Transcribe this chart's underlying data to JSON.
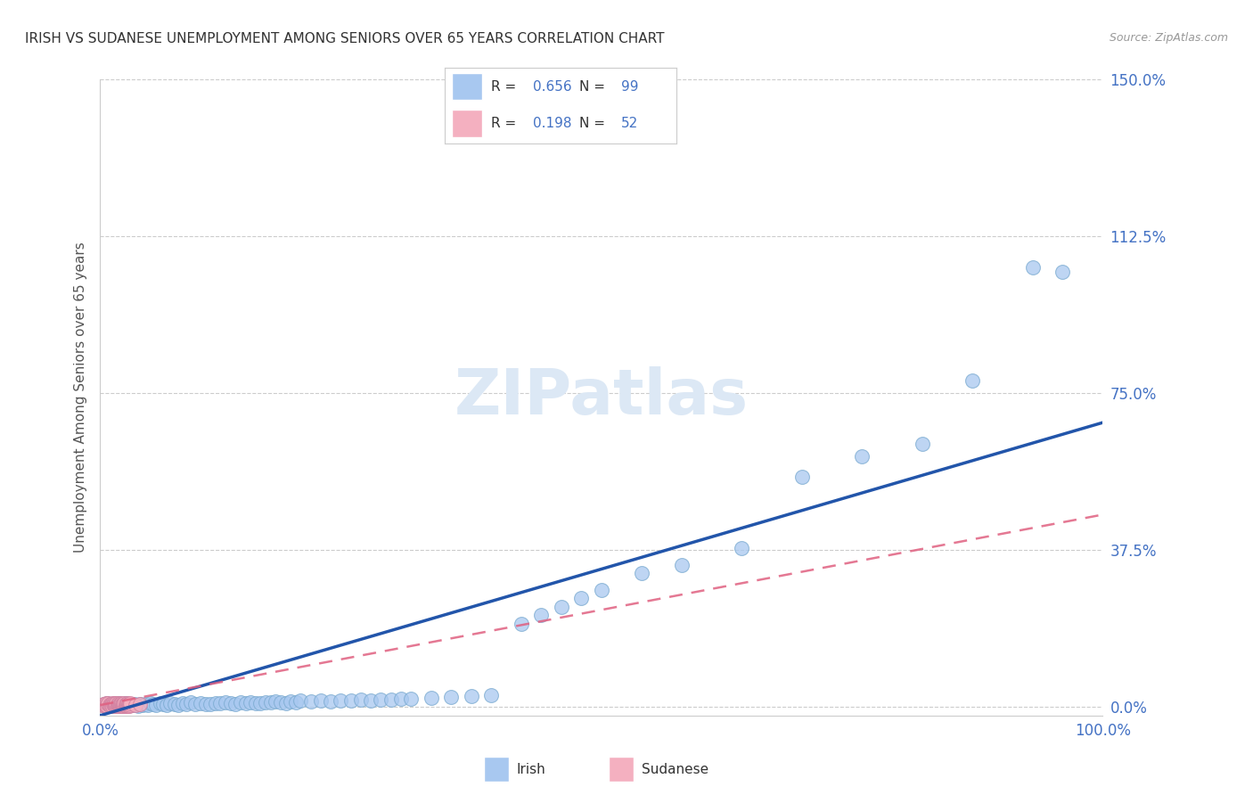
{
  "title": "IRISH VS SUDANESE UNEMPLOYMENT AMONG SENIORS OVER 65 YEARS CORRELATION CHART",
  "source": "Source: ZipAtlas.com",
  "ylabel_label": "Unemployment Among Seniors over 65 years",
  "legend_irish": "Irish",
  "legend_sudanese": "Sudanese",
  "irish_R": "0.656",
  "irish_N": "99",
  "sudanese_R": "0.198",
  "sudanese_N": "52",
  "irish_color": "#a8c8f0",
  "irish_edge_color": "#7aaad0",
  "irish_line_color": "#2255aa",
  "sudanese_color": "#f4b0c0",
  "sudanese_edge_color": "#d080a0",
  "sudanese_line_color": "#e06080",
  "title_color": "#333333",
  "axis_tick_color": "#4472c4",
  "grid_color": "#cccccc",
  "background_color": "#ffffff",
  "watermark_color": "#dce8f5",
  "irish_x": [
    0.003,
    0.004,
    0.005,
    0.006,
    0.007,
    0.008,
    0.008,
    0.009,
    0.01,
    0.011,
    0.012,
    0.013,
    0.014,
    0.015,
    0.016,
    0.017,
    0.018,
    0.019,
    0.02,
    0.021,
    0.022,
    0.023,
    0.024,
    0.025,
    0.026,
    0.027,
    0.028,
    0.03,
    0.032,
    0.034,
    0.036,
    0.038,
    0.04,
    0.042,
    0.045,
    0.048,
    0.05,
    0.053,
    0.056,
    0.06,
    0.063,
    0.066,
    0.07,
    0.074,
    0.078,
    0.082,
    0.086,
    0.09,
    0.095,
    0.1,
    0.105,
    0.11,
    0.115,
    0.12,
    0.125,
    0.13,
    0.135,
    0.14,
    0.145,
    0.15,
    0.155,
    0.16,
    0.165,
    0.17,
    0.175,
    0.18,
    0.185,
    0.19,
    0.195,
    0.2,
    0.21,
    0.22,
    0.23,
    0.24,
    0.25,
    0.26,
    0.27,
    0.28,
    0.29,
    0.3,
    0.31,
    0.33,
    0.35,
    0.37,
    0.39,
    0.42,
    0.44,
    0.46,
    0.48,
    0.5,
    0.54,
    0.58,
    0.64,
    0.7,
    0.76,
    0.82,
    0.87,
    0.93,
    0.96
  ],
  "irish_y": [
    0.005,
    0.008,
    0.003,
    0.006,
    0.01,
    0.004,
    0.007,
    0.005,
    0.008,
    0.006,
    0.004,
    0.007,
    0.005,
    0.008,
    0.003,
    0.006,
    0.009,
    0.004,
    0.007,
    0.005,
    0.008,
    0.006,
    0.004,
    0.009,
    0.005,
    0.007,
    0.006,
    0.008,
    0.005,
    0.007,
    0.006,
    0.004,
    0.008,
    0.005,
    0.007,
    0.006,
    0.01,
    0.007,
    0.005,
    0.009,
    0.007,
    0.006,
    0.01,
    0.008,
    0.006,
    0.009,
    0.007,
    0.011,
    0.008,
    0.01,
    0.008,
    0.007,
    0.01,
    0.009,
    0.011,
    0.009,
    0.008,
    0.011,
    0.01,
    0.012,
    0.01,
    0.009,
    0.012,
    0.011,
    0.013,
    0.011,
    0.01,
    0.014,
    0.012,
    0.015,
    0.013,
    0.015,
    0.014,
    0.016,
    0.015,
    0.017,
    0.016,
    0.018,
    0.017,
    0.019,
    0.02,
    0.022,
    0.024,
    0.026,
    0.028,
    0.2,
    0.22,
    0.24,
    0.26,
    0.28,
    0.32,
    0.34,
    0.38,
    0.55,
    0.6,
    0.63,
    0.78,
    1.05,
    1.04
  ],
  "sudanese_x": [
    0.002,
    0.003,
    0.004,
    0.005,
    0.006,
    0.006,
    0.007,
    0.008,
    0.008,
    0.009,
    0.01,
    0.01,
    0.011,
    0.012,
    0.012,
    0.013,
    0.014,
    0.014,
    0.015,
    0.015,
    0.016,
    0.016,
    0.017,
    0.017,
    0.018,
    0.018,
    0.019,
    0.019,
    0.02,
    0.02,
    0.021,
    0.021,
    0.022,
    0.022,
    0.023,
    0.023,
    0.024,
    0.024,
    0.025,
    0.025,
    0.026,
    0.026,
    0.027,
    0.027,
    0.028,
    0.028,
    0.029,
    0.029,
    0.03,
    0.03,
    0.035,
    0.04
  ],
  "sudanese_y": [
    0.005,
    0.008,
    0.003,
    0.006,
    0.01,
    0.004,
    0.003,
    0.007,
    0.009,
    0.005,
    0.008,
    0.004,
    0.006,
    0.01,
    0.003,
    0.007,
    0.005,
    0.009,
    0.004,
    0.008,
    0.006,
    0.01,
    0.003,
    0.007,
    0.005,
    0.009,
    0.004,
    0.008,
    0.003,
    0.007,
    0.005,
    0.009,
    0.004,
    0.008,
    0.003,
    0.007,
    0.005,
    0.009,
    0.004,
    0.008,
    0.003,
    0.007,
    0.005,
    0.009,
    0.004,
    0.008,
    0.003,
    0.007,
    0.005,
    0.009,
    0.006,
    0.008
  ],
  "irish_line_x0": 0.0,
  "irish_line_y0": -0.02,
  "irish_line_x1": 1.0,
  "irish_line_y1": 0.68,
  "sudanese_line_x0": 0.0,
  "sudanese_line_y0": 0.005,
  "sudanese_line_x1": 1.0,
  "sudanese_line_y1": 0.46,
  "xlim": [
    0.0,
    1.0
  ],
  "ylim": [
    -0.02,
    1.5
  ],
  "xticks": [
    0.0,
    1.0
  ],
  "yticks": [
    0.0,
    0.375,
    0.75,
    1.125,
    1.5
  ],
  "ytick_labels": [
    "0.0%",
    "37.5%",
    "75.0%",
    "112.5%",
    "150.0%"
  ],
  "xtick_labels": [
    "0.0%",
    "100.0%"
  ]
}
